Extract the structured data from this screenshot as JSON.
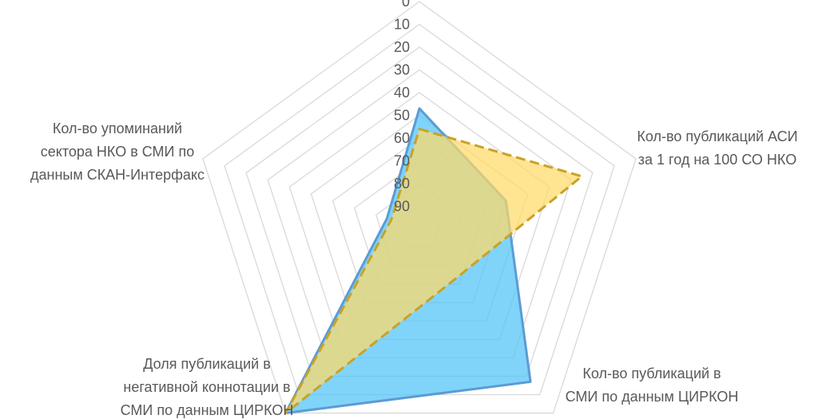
{
  "chart_data": {
    "type": "radar",
    "title": "",
    "axis": {
      "min": 0,
      "max": 100,
      "step": 10,
      "reversed": true,
      "tick_labels": [
        "0",
        "10",
        "20",
        "30",
        "40",
        "50",
        "60",
        "70",
        "80",
        "90"
      ]
    },
    "grid": true,
    "legend": "none",
    "categories": [
      {
        "label_lines": []
      },
      {
        "label_lines": [
          "Кол-во публикаций АСИ",
          "за 1 год на 100 СО НКО"
        ]
      },
      {
        "label_lines": [
          "Кол-во публикаций в",
          "СМИ по данным ЦИРКОН"
        ]
      },
      {
        "label_lines": [
          "Доля публикаций в",
          "негативной коннотации в",
          "СМИ по данным ЦИРКОН"
        ]
      },
      {
        "label_lines": [
          "Кол-во упоминаний",
          "сектора НКО в СМИ по",
          "данным СКАН-Интерфакс"
        ]
      }
    ],
    "series": [
      {
        "values": [
          47,
          60,
          17,
          0,
          85
        ],
        "fill": "#4FC3F7",
        "stroke": "#5B9BD5",
        "dashed": false
      },
      {
        "values": [
          56,
          25,
          73,
          0,
          87
        ],
        "fill": "#FFD966",
        "stroke": "#C9A227",
        "dashed": true
      }
    ],
    "colors": {
      "grid": "#D9D9D9",
      "text": "#595959"
    }
  }
}
